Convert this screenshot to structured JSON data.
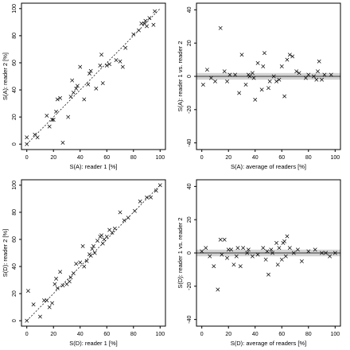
{
  "chart_data": [
    {
      "type": "scatter",
      "xlabel": "S(A): reader 1 [%]",
      "ylabel": "S(A): reader 2 [%]",
      "xlim": [
        -4,
        104
      ],
      "ylim": [
        -4,
        104
      ],
      "xticks": [
        0,
        20,
        40,
        60,
        80,
        100
      ],
      "yticks": [
        0,
        20,
        40,
        60,
        80,
        100
      ],
      "identity_line": true,
      "marker": "x",
      "points": [
        [
          0,
          0
        ],
        [
          0,
          5
        ],
        [
          6,
          7
        ],
        [
          8,
          5
        ],
        [
          15,
          21
        ],
        [
          17,
          13
        ],
        [
          19,
          18
        ],
        [
          20,
          18
        ],
        [
          22,
          24
        ],
        [
          23,
          33
        ],
        [
          25,
          34
        ],
        [
          27,
          1
        ],
        [
          31,
          20
        ],
        [
          33,
          35
        ],
        [
          34,
          47
        ],
        [
          35,
          38
        ],
        [
          37,
          41
        ],
        [
          38,
          43
        ],
        [
          40,
          57
        ],
        [
          43,
          33
        ],
        [
          46,
          44
        ],
        [
          47,
          52
        ],
        [
          48,
          54
        ],
        [
          52,
          41
        ],
        [
          55,
          58
        ],
        [
          56,
          66
        ],
        [
          57,
          45
        ],
        [
          60,
          58
        ],
        [
          62,
          59
        ],
        [
          67,
          62
        ],
        [
          70,
          61
        ],
        [
          72,
          57
        ],
        [
          74,
          71
        ],
        [
          80,
          81
        ],
        [
          84,
          84
        ],
        [
          86,
          89
        ],
        [
          88,
          89
        ],
        [
          89,
          91
        ],
        [
          90,
          87
        ],
        [
          92,
          93
        ],
        [
          95,
          88
        ],
        [
          96,
          98
        ]
      ]
    },
    {
      "type": "scatter",
      "xlabel": "S(A): average of readers [%]",
      "ylabel": "S(A): reader 1 vs. reader 2",
      "xlim": [
        -4,
        104
      ],
      "ylim": [
        -44,
        44
      ],
      "xticks": [
        0,
        20,
        40,
        60,
        80,
        100
      ],
      "yticks": [
        -40,
        -20,
        0,
        20,
        40
      ],
      "reference_line": 0,
      "band": [
        -2,
        2
      ],
      "marker": "x",
      "points": [
        [
          1,
          -5
        ],
        [
          4,
          4
        ],
        [
          7,
          -1
        ],
        [
          10,
          -3
        ],
        [
          14,
          29
        ],
        [
          17,
          3
        ],
        [
          19,
          -3
        ],
        [
          21,
          1
        ],
        [
          25,
          1
        ],
        [
          28,
          -10
        ],
        [
          30,
          13
        ],
        [
          33,
          -5
        ],
        [
          35,
          1
        ],
        [
          36,
          0
        ],
        [
          38,
          2
        ],
        [
          39,
          -1
        ],
        [
          40,
          -14
        ],
        [
          42,
          8
        ],
        [
          45,
          -8
        ],
        [
          46,
          6
        ],
        [
          47,
          14
        ],
        [
          50,
          -7
        ],
        [
          51,
          -3
        ],
        [
          54,
          0
        ],
        [
          56,
          -3
        ],
        [
          58,
          -2
        ],
        [
          60,
          6
        ],
        [
          62,
          -12
        ],
        [
          64,
          10
        ],
        [
          66,
          13
        ],
        [
          68,
          12
        ],
        [
          71,
          3
        ],
        [
          73,
          2
        ],
        [
          78,
          -1
        ],
        [
          80,
          1
        ],
        [
          84,
          0
        ],
        [
          86,
          -2
        ],
        [
          87,
          3
        ],
        [
          88,
          9
        ],
        [
          90,
          -2
        ],
        [
          92,
          1
        ],
        [
          97,
          1
        ]
      ]
    },
    {
      "type": "scatter",
      "xlabel": "S(D): reader 1 [%]",
      "ylabel": "S(D): reader 2 [%]",
      "xlim": [
        -4,
        104
      ],
      "ylim": [
        -4,
        104
      ],
      "xticks": [
        0,
        20,
        40,
        60,
        80,
        100
      ],
      "yticks": [
        0,
        20,
        40,
        60,
        80,
        100
      ],
      "identity_line": true,
      "marker": "x",
      "points": [
        [
          0,
          0
        ],
        [
          1,
          22
        ],
        [
          5,
          12
        ],
        [
          10,
          3
        ],
        [
          13,
          15
        ],
        [
          15,
          15
        ],
        [
          17,
          10
        ],
        [
          19,
          13
        ],
        [
          21,
          27
        ],
        [
          22,
          31
        ],
        [
          23,
          24
        ],
        [
          25,
          36
        ],
        [
          27,
          26
        ],
        [
          30,
          27
        ],
        [
          32,
          29
        ],
        [
          33,
          32
        ],
        [
          35,
          35
        ],
        [
          37,
          42
        ],
        [
          40,
          43
        ],
        [
          42,
          55
        ],
        [
          43,
          40
        ],
        [
          45,
          44
        ],
        [
          47,
          49
        ],
        [
          48,
          48
        ],
        [
          49,
          53
        ],
        [
          50,
          55
        ],
        [
          51,
          50
        ],
        [
          53,
          59
        ],
        [
          55,
          62
        ],
        [
          56,
          63
        ],
        [
          57,
          57
        ],
        [
          58,
          60
        ],
        [
          60,
          62
        ],
        [
          62,
          67
        ],
        [
          64,
          65
        ],
        [
          66,
          68
        ],
        [
          70,
          80
        ],
        [
          73,
          74
        ],
        [
          76,
          76
        ],
        [
          81,
          81
        ],
        [
          85,
          88
        ],
        [
          90,
          91
        ],
        [
          93,
          91
        ],
        [
          97,
          96
        ],
        [
          100,
          100
        ]
      ]
    },
    {
      "type": "scatter",
      "xlabel": "S(D): average of readers [%]",
      "ylabel": "S(D): reader 1 vs. reader 2",
      "xlim": [
        -4,
        104
      ],
      "ylim": [
        -44,
        44
      ],
      "xticks": [
        0,
        20,
        40,
        60,
        80,
        100
      ],
      "yticks": [
        -40,
        -20,
        0,
        20,
        40
      ],
      "reference_line": 0,
      "band": [
        -2,
        2
      ],
      "marker": "x",
      "points": [
        [
          0,
          1
        ],
        [
          3,
          3
        ],
        [
          6,
          -2
        ],
        [
          9,
          -8
        ],
        [
          12,
          -22
        ],
        [
          14,
          8
        ],
        [
          15,
          -1
        ],
        [
          17,
          8
        ],
        [
          19,
          -3
        ],
        [
          20,
          2
        ],
        [
          22,
          2
        ],
        [
          24,
          -7
        ],
        [
          26,
          -2
        ],
        [
          27,
          3
        ],
        [
          29,
          -8
        ],
        [
          31,
          3
        ],
        [
          34,
          0
        ],
        [
          35,
          2
        ],
        [
          38,
          -2
        ],
        [
          42,
          -1
        ],
        [
          46,
          3
        ],
        [
          48,
          -4
        ],
        [
          49,
          1
        ],
        [
          50,
          -13
        ],
        [
          52,
          2
        ],
        [
          53,
          0
        ],
        [
          56,
          6
        ],
        [
          57,
          -7
        ],
        [
          58,
          3
        ],
        [
          60,
          -4
        ],
        [
          61,
          6
        ],
        [
          62,
          7
        ],
        [
          63,
          -2
        ],
        [
          64,
          10
        ],
        [
          66,
          3
        ],
        [
          69,
          0
        ],
        [
          72,
          2
        ],
        [
          75,
          -5
        ],
        [
          80,
          1
        ],
        [
          85,
          2
        ],
        [
          90,
          0
        ],
        [
          93,
          0
        ],
        [
          96,
          -2
        ],
        [
          100,
          0
        ]
      ]
    }
  ]
}
